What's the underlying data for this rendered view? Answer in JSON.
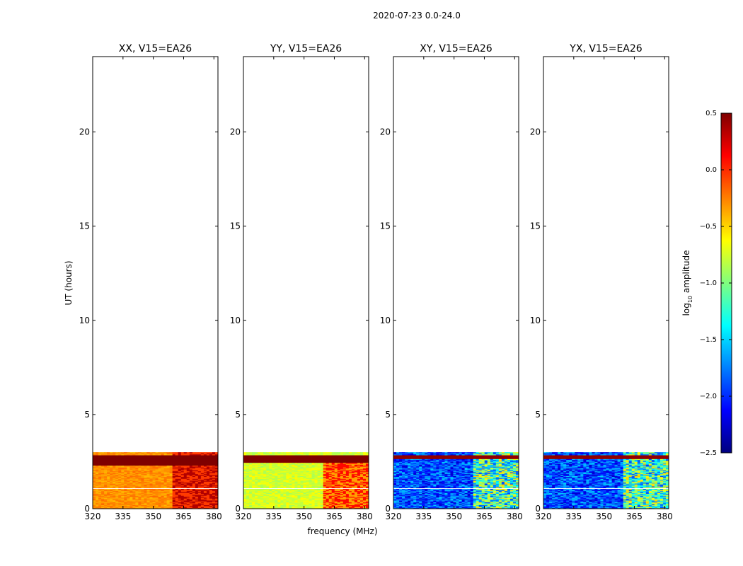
{
  "figure_title": "2020-07-23 0.0-24.0",
  "chart_data": [
    {
      "type": "heatmap",
      "title": "XX, V15=EA26",
      "pol": "XX",
      "xlabel": "",
      "ylabel": "UT (hours)",
      "xticks": [
        "320",
        "335",
        "350",
        "365",
        "380"
      ],
      "yticks": [
        "0",
        "5",
        "10",
        "15",
        "20"
      ],
      "xlim": [
        320,
        382
      ],
      "ylim": [
        0,
        24
      ],
      "data_extent_hours": [
        0,
        3.0
      ]
    },
    {
      "type": "heatmap",
      "title": "YY, V15=EA26",
      "pol": "YY",
      "xlabel": "frequency (MHz)",
      "ylabel": "",
      "xticks": [
        "320",
        "335",
        "350",
        "365",
        "380"
      ],
      "yticks": [
        "0",
        "5",
        "10",
        "15",
        "20"
      ],
      "xlim": [
        320,
        382
      ],
      "ylim": [
        0,
        24
      ],
      "data_extent_hours": [
        0,
        3.0
      ]
    },
    {
      "type": "heatmap",
      "title": "XY, V15=EA26",
      "pol": "XY",
      "xlabel": "",
      "ylabel": "",
      "xticks": [
        "320",
        "335",
        "350",
        "365",
        "380"
      ],
      "yticks": [
        "0",
        "5",
        "10",
        "15",
        "20"
      ],
      "xlim": [
        320,
        382
      ],
      "ylim": [
        0,
        24
      ],
      "data_extent_hours": [
        0,
        3.0
      ]
    },
    {
      "type": "heatmap",
      "title": "YX, V15=EA26",
      "pol": "YX",
      "xlabel": "",
      "ylabel": "",
      "xticks": [
        "320",
        "335",
        "350",
        "365",
        "380"
      ],
      "yticks": [
        "0",
        "5",
        "10",
        "15",
        "20"
      ],
      "xlim": [
        320,
        382
      ],
      "ylim": [
        0,
        24
      ],
      "data_extent_hours": [
        0,
        3.0
      ]
    }
  ],
  "colorbar": {
    "label_prefix": "log",
    "label_sub": "10",
    "label_suffix": " amplitude",
    "range": [
      -2.5,
      0.5
    ],
    "ticks": [
      "0.5",
      "0.0",
      "−0.5",
      "−1.0",
      "−1.5",
      "−2.0",
      "−2.5"
    ],
    "tick_values": [
      0.5,
      0.0,
      -0.5,
      -1.0,
      -1.5,
      -2.0,
      -2.5
    ],
    "colors": [
      "#00007f",
      "#0000ff",
      "#007fff",
      "#00ffff",
      "#7fff7f",
      "#ffff00",
      "#ff7f00",
      "#ff0000",
      "#7f0000"
    ]
  }
}
